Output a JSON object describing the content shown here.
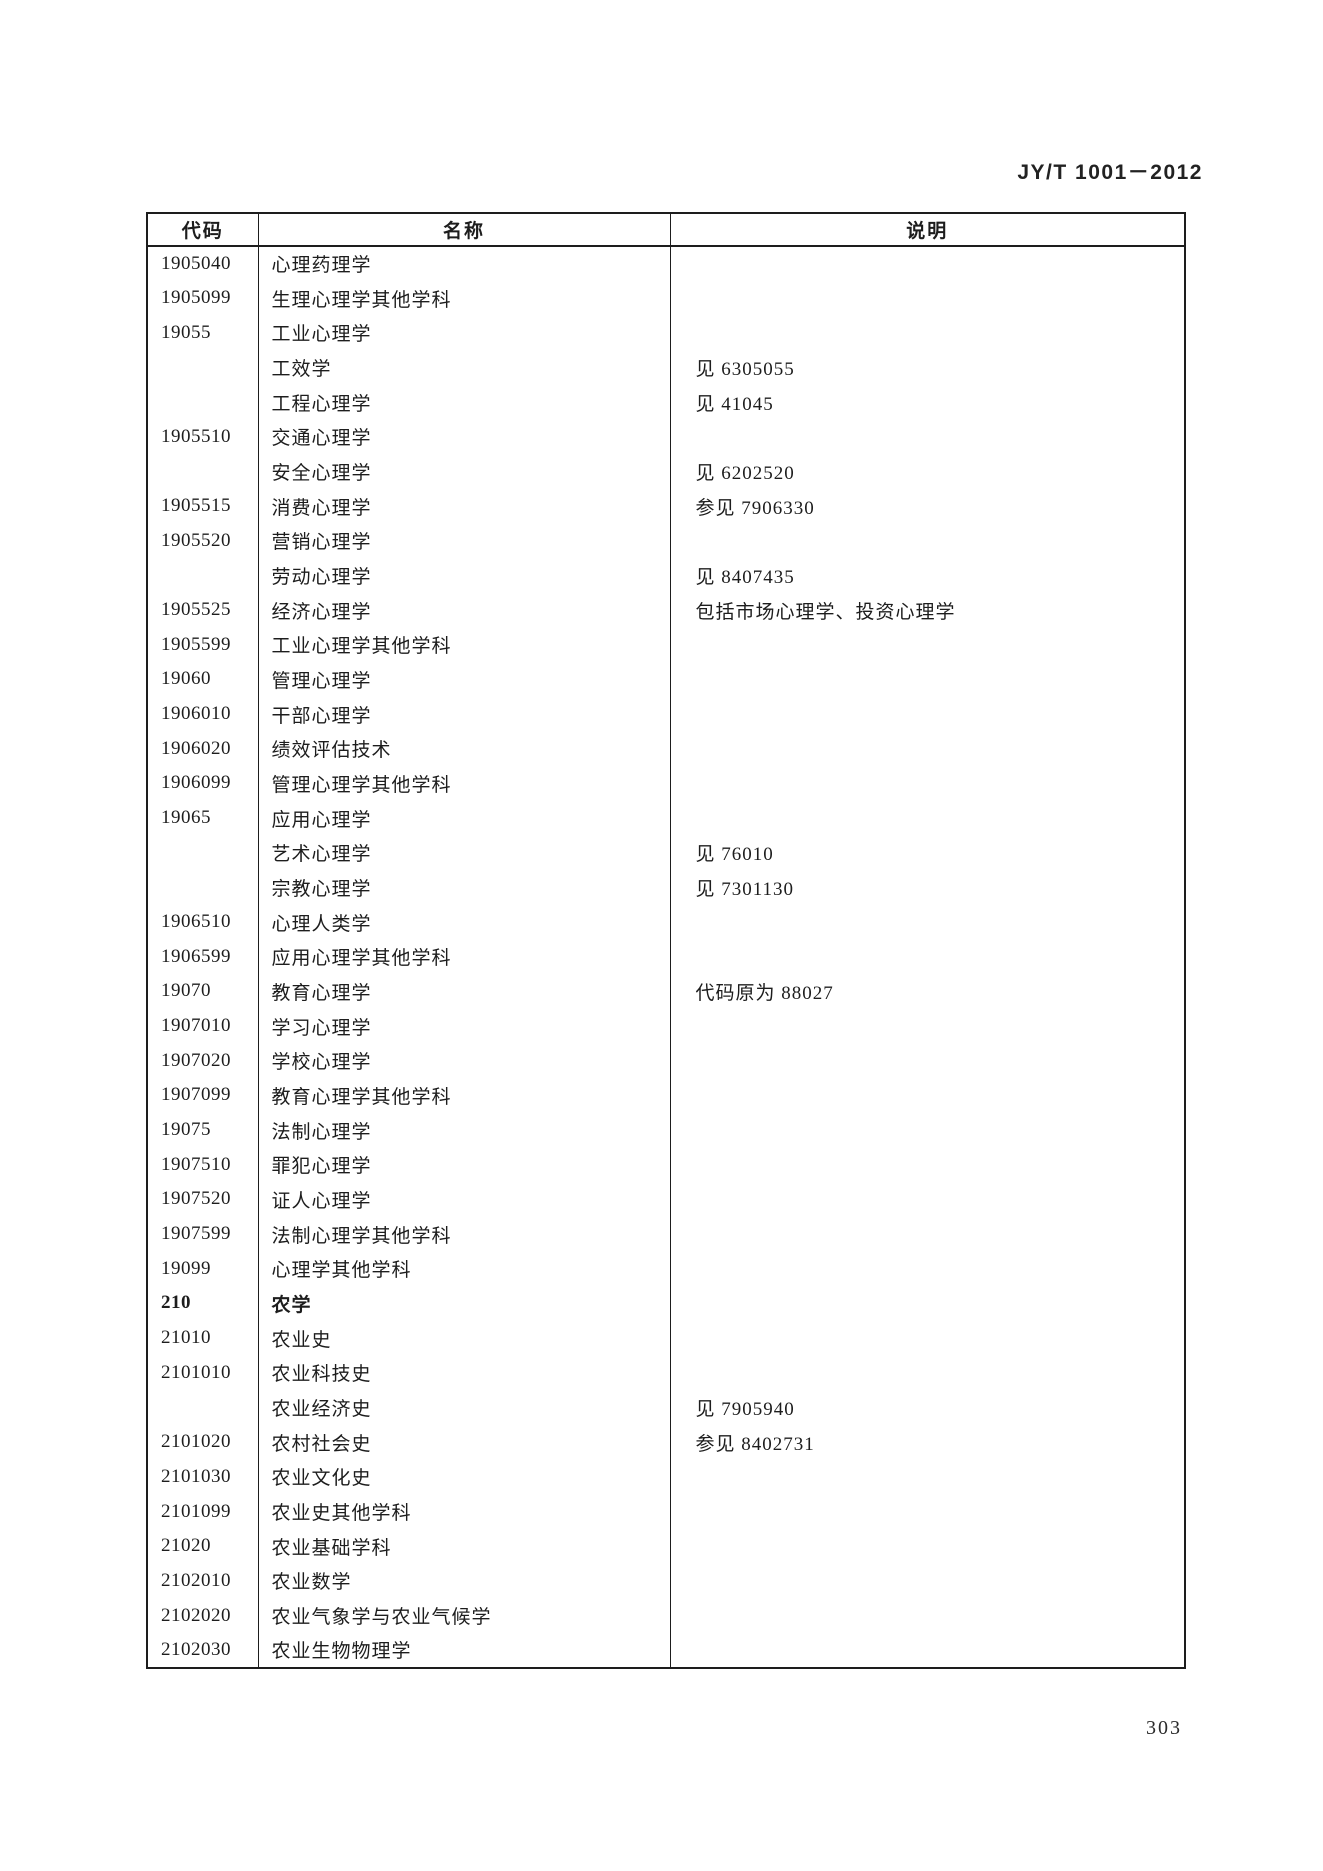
{
  "header": {
    "doc_number": "JY/T 1001－2012"
  },
  "table": {
    "columns": [
      "代码",
      "名称",
      "说明"
    ],
    "rows": [
      {
        "code": "1905040",
        "name": "心理药理学",
        "note": ""
      },
      {
        "code": "1905099",
        "name": "生理心理学其他学科",
        "note": ""
      },
      {
        "code": "19055",
        "name": "工业心理学",
        "note": ""
      },
      {
        "code": "",
        "name": "工效学",
        "note": "见 6305055"
      },
      {
        "code": "",
        "name": "工程心理学",
        "note": "见 41045"
      },
      {
        "code": "1905510",
        "name": "交通心理学",
        "note": ""
      },
      {
        "code": "",
        "name": "安全心理学",
        "note": "见 6202520"
      },
      {
        "code": "1905515",
        "name": "消费心理学",
        "note": "参见 7906330"
      },
      {
        "code": "1905520",
        "name": "营销心理学",
        "note": ""
      },
      {
        "code": "",
        "name": "劳动心理学",
        "note": "见 8407435"
      },
      {
        "code": "1905525",
        "name": "经济心理学",
        "note": "包括市场心理学、投资心理学"
      },
      {
        "code": "1905599",
        "name": "工业心理学其他学科",
        "note": ""
      },
      {
        "code": "19060",
        "name": "管理心理学",
        "note": ""
      },
      {
        "code": "1906010",
        "name": "干部心理学",
        "note": ""
      },
      {
        "code": "1906020",
        "name": "绩效评估技术",
        "note": ""
      },
      {
        "code": "1906099",
        "name": "管理心理学其他学科",
        "note": ""
      },
      {
        "code": "19065",
        "name": "应用心理学",
        "note": ""
      },
      {
        "code": "",
        "name": "艺术心理学",
        "note": "见 76010"
      },
      {
        "code": "",
        "name": "宗教心理学",
        "note": "见 7301130"
      },
      {
        "code": "1906510",
        "name": "心理人类学",
        "note": ""
      },
      {
        "code": "1906599",
        "name": "应用心理学其他学科",
        "note": ""
      },
      {
        "code": "19070",
        "name": "教育心理学",
        "note": "代码原为 88027"
      },
      {
        "code": "1907010",
        "name": "学习心理学",
        "note": ""
      },
      {
        "code": "1907020",
        "name": "学校心理学",
        "note": ""
      },
      {
        "code": "1907099",
        "name": "教育心理学其他学科",
        "note": ""
      },
      {
        "code": "19075",
        "name": "法制心理学",
        "note": ""
      },
      {
        "code": "1907510",
        "name": "罪犯心理学",
        "note": ""
      },
      {
        "code": "1907520",
        "name": "证人心理学",
        "note": ""
      },
      {
        "code": "1907599",
        "name": "法制心理学其他学科",
        "note": ""
      },
      {
        "code": "19099",
        "name": "心理学其他学科",
        "note": ""
      },
      {
        "code": "210",
        "name": "农学",
        "note": "",
        "bold": true
      },
      {
        "code": "21010",
        "name": "农业史",
        "note": ""
      },
      {
        "code": "2101010",
        "name": "农业科技史",
        "note": ""
      },
      {
        "code": "",
        "name": "农业经济史",
        "note": "见 7905940"
      },
      {
        "code": "2101020",
        "name": "农村社会史",
        "note": "参见 8402731"
      },
      {
        "code": "2101030",
        "name": "农业文化史",
        "note": ""
      },
      {
        "code": "2101099",
        "name": "农业史其他学科",
        "note": ""
      },
      {
        "code": "21020",
        "name": "农业基础学科",
        "note": ""
      },
      {
        "code": "2102010",
        "name": "农业数学",
        "note": ""
      },
      {
        "code": "2102020",
        "name": "农业气象学与农业气候学",
        "note": ""
      },
      {
        "code": "2102030",
        "name": "农业生物物理学",
        "note": ""
      }
    ]
  },
  "footer": {
    "page_number": "303"
  }
}
